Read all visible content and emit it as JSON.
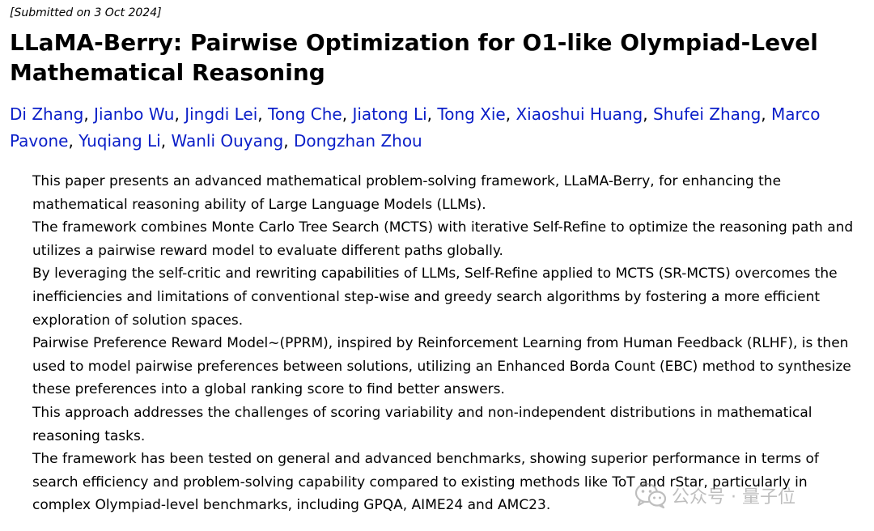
{
  "submission": {
    "dateline": "[Submitted on 3 Oct 2024]"
  },
  "paper": {
    "title": "LLaMA-Berry: Pairwise Optimization for O1-like Olympiad-Level Mathematical Reasoning",
    "authors": [
      "Di Zhang",
      "Jianbo Wu",
      "Jingdi Lei",
      "Tong Che",
      "Jiatong Li",
      "Tong Xie",
      "Xiaoshui Huang",
      "Shufei Zhang",
      "Marco Pavone",
      "Yuqiang Li",
      "Wanli Ouyang",
      "Dongzhan Zhou"
    ],
    "author_separator": ", ",
    "abstract": [
      "This paper presents an advanced mathematical problem-solving framework, LLaMA-Berry, for enhancing the mathematical reasoning ability of Large Language Models (LLMs).",
      "The framework combines Monte Carlo Tree Search (MCTS) with iterative Self-Refine to optimize the reasoning path and utilizes a pairwise reward model to evaluate different paths globally.",
      "By leveraging the self-critic and rewriting capabilities of LLMs, Self-Refine applied to MCTS (SR-MCTS) overcomes the inefficiencies and limitations of conventional step-wise and greedy search algorithms by fostering a more efficient exploration of solution spaces.",
      "Pairwise Preference Reward Model~(PPRM), inspired by Reinforcement Learning from Human Feedback (RLHF), is then used to model pairwise preferences between solutions, utilizing an Enhanced Borda Count (EBC) method to synthesize these preferences into a global ranking score to find better answers.",
      "This approach addresses the challenges of scoring variability and non-independent distributions in mathematical reasoning tasks.",
      "The framework has been tested on general and advanced benchmarks, showing superior performance in terms of search efficiency and problem-solving capability compared to existing methods like ToT and rStar, particularly in complex Olympiad-level benchmarks, including GPQA, AIME24 and AMC23."
    ]
  },
  "watermark": {
    "icon": "wechat-icon",
    "text": "公众号 · 量子位"
  },
  "colors": {
    "author_link": "#0a1ec8",
    "text": "#000000",
    "background": "#ffffff",
    "watermark": "#8a8a8a"
  }
}
